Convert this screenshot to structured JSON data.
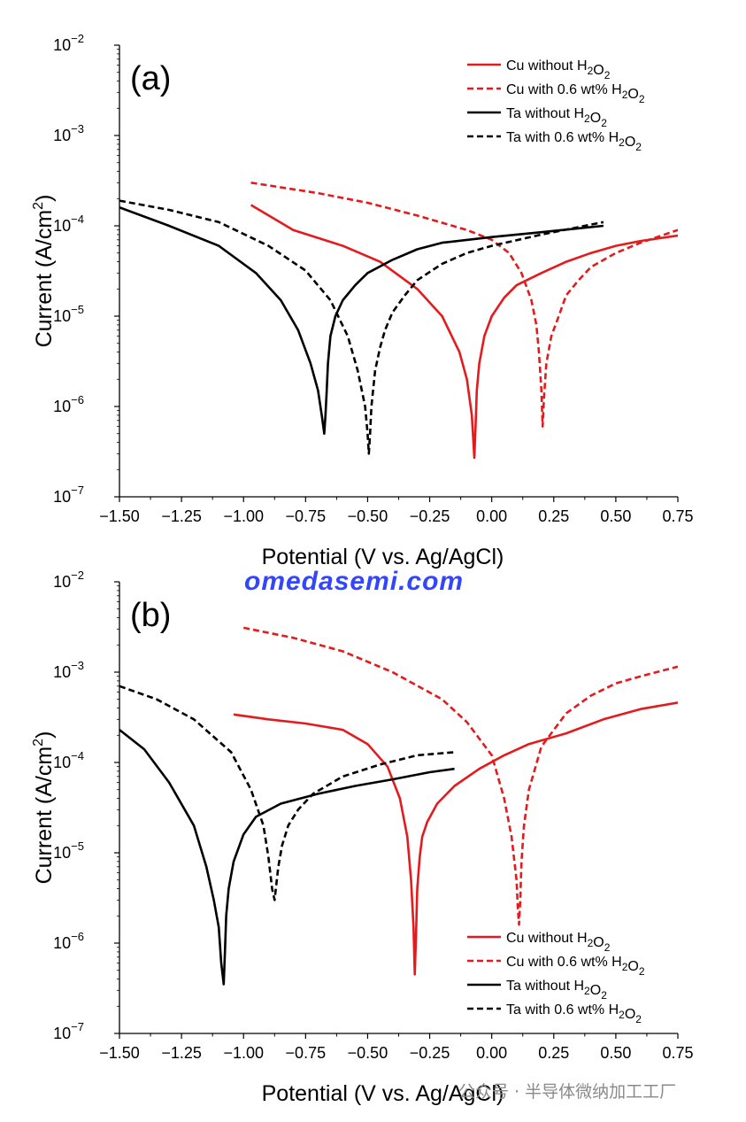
{
  "watermark": "omedasemi.com",
  "watermark_bottom": "公众号 · 半导体微纳加工工厂",
  "chart_data": [
    {
      "type": "line",
      "panel_label": "(a)",
      "xlabel": "Potential (V vs. Ag/AgCl)",
      "ylabel": "Current (A/cm²)",
      "y_scale": "log",
      "xlim": [
        -1.5,
        0.75
      ],
      "ylim": [
        1e-07,
        0.01
      ],
      "x_ticks": [
        "−1.50",
        "−1.25",
        "−1.00",
        "−0.75",
        "−0.50",
        "−0.25",
        "0.00",
        "0.25",
        "0.50",
        "0.75"
      ],
      "y_ticks": [
        {
          "base": "10",
          "exp": "−2"
        },
        {
          "base": "10",
          "exp": "−3"
        },
        {
          "base": "10",
          "exp": "−4"
        },
        {
          "base": "10",
          "exp": "−5"
        },
        {
          "base": "10",
          "exp": "−6"
        },
        {
          "base": "10",
          "exp": "−7"
        }
      ],
      "legend_position": "top-right",
      "series": [
        {
          "name": "Cu without H₂O₂",
          "color": "#e41a1c",
          "dash": false,
          "x": [
            -0.97,
            -0.8,
            -0.6,
            -0.45,
            -0.3,
            -0.2,
            -0.13,
            -0.1,
            -0.08,
            -0.07,
            -0.065,
            -0.06,
            -0.05,
            -0.03,
            0.0,
            0.05,
            0.1,
            0.2,
            0.3,
            0.4,
            0.5,
            0.6,
            0.75
          ],
          "y": [
            0.00017,
            9e-05,
            6e-05,
            4e-05,
            2e-05,
            1e-05,
            4e-06,
            2e-06,
            8e-07,
            2.7e-07,
            6e-07,
            1.5e-06,
            3e-06,
            6e-06,
            1e-05,
            1.6e-05,
            2.2e-05,
            3e-05,
            4e-05,
            5e-05,
            6e-05,
            6.8e-05,
            7.8e-05
          ]
        },
        {
          "name": "Cu with 0.6 wt% H₂O₂",
          "color": "#e41a1c",
          "dash": true,
          "x": [
            -0.97,
            -0.7,
            -0.5,
            -0.3,
            -0.1,
            0.0,
            0.07,
            0.12,
            0.16,
            0.18,
            0.19,
            0.2,
            0.205,
            0.21,
            0.22,
            0.24,
            0.27,
            0.3,
            0.35,
            0.4,
            0.5,
            0.6,
            0.75
          ],
          "y": [
            0.0003,
            0.00023,
            0.00018,
            0.00013,
            9e-05,
            7e-05,
            5e-05,
            3e-05,
            1.5e-05,
            8e-06,
            4e-06,
            1.5e-06,
            6e-07,
            1.2e-06,
            3e-06,
            6e-06,
            1e-05,
            1.7e-05,
            2.5e-05,
            3.5e-05,
            5e-05,
            6.5e-05,
            9e-05
          ]
        },
        {
          "name": "Ta without H₂O₂",
          "color": "#000000",
          "dash": false,
          "x": [
            -1.5,
            -1.3,
            -1.1,
            -0.95,
            -0.85,
            -0.78,
            -0.73,
            -0.7,
            -0.685,
            -0.675,
            -0.67,
            -0.665,
            -0.66,
            -0.65,
            -0.63,
            -0.6,
            -0.55,
            -0.5,
            -0.4,
            -0.3,
            -0.2,
            0.0,
            0.2,
            0.45
          ],
          "y": [
            0.00016,
            0.0001,
            6e-05,
            3e-05,
            1.5e-05,
            7e-06,
            3e-06,
            1.5e-06,
            8e-07,
            5e-07,
            8e-07,
            1.5e-06,
            3e-06,
            6e-06,
            1e-05,
            1.5e-05,
            2.2e-05,
            3e-05,
            4.2e-05,
            5.5e-05,
            6.5e-05,
            7.5e-05,
            8.5e-05,
            0.0001
          ]
        },
        {
          "name": "Ta with 0.6 wt% H₂O₂",
          "color": "#000000",
          "dash": true,
          "x": [
            -1.5,
            -1.3,
            -1.1,
            -0.9,
            -0.75,
            -0.65,
            -0.58,
            -0.54,
            -0.51,
            -0.5,
            -0.495,
            -0.49,
            -0.485,
            -0.47,
            -0.45,
            -0.43,
            -0.4,
            -0.35,
            -0.3,
            -0.2,
            -0.1,
            0.0,
            0.2,
            0.45
          ],
          "y": [
            0.00019,
            0.00015,
            0.00011,
            6e-05,
            3.2e-05,
            1.5e-05,
            6e-06,
            2.5e-06,
            1e-06,
            5e-07,
            3e-07,
            5e-07,
            1e-06,
            2.5e-06,
            4.5e-06,
            7e-06,
            1.1e-05,
            1.7e-05,
            2.5e-05,
            3.8e-05,
            5e-05,
            6e-05,
            8e-05,
            0.00011
          ]
        }
      ]
    },
    {
      "type": "line",
      "panel_label": "(b)",
      "xlabel": "Potential (V vs. Ag/AgCl)",
      "ylabel": "Current (A/cm²)",
      "y_scale": "log",
      "xlim": [
        -1.5,
        0.75
      ],
      "ylim": [
        1e-07,
        0.01
      ],
      "x_ticks": [
        "−1.50",
        "−1.25",
        "−1.00",
        "−0.75",
        "−0.50",
        "−0.25",
        "0.00",
        "0.25",
        "0.50",
        "0.75"
      ],
      "y_ticks": [
        {
          "base": "10",
          "exp": "−2"
        },
        {
          "base": "10",
          "exp": "−3"
        },
        {
          "base": "10",
          "exp": "−4"
        },
        {
          "base": "10",
          "exp": "−5"
        },
        {
          "base": "10",
          "exp": "−6"
        },
        {
          "base": "10",
          "exp": "−7"
        }
      ],
      "legend_position": "bottom-right",
      "series": [
        {
          "name": "Cu without H₂O₂",
          "color": "#e41a1c",
          "dash": false,
          "x": [
            -1.04,
            -0.9,
            -0.75,
            -0.6,
            -0.5,
            -0.42,
            -0.37,
            -0.34,
            -0.325,
            -0.315,
            -0.31,
            -0.305,
            -0.3,
            -0.29,
            -0.28,
            -0.26,
            -0.22,
            -0.15,
            -0.05,
            0.05,
            0.15,
            0.3,
            0.45,
            0.6,
            0.75
          ],
          "y": [
            0.00034,
            0.0003,
            0.00027,
            0.00023,
            0.00016,
            9e-05,
            4e-05,
            1.5e-05,
            5e-06,
            1.5e-06,
            4.5e-07,
            1.2e-06,
            4e-06,
            9e-06,
            1.5e-05,
            2.2e-05,
            3.5e-05,
            5.5e-05,
            8.5e-05,
            0.00012,
            0.00016,
            0.00021,
            0.0003,
            0.00039,
            0.00046
          ]
        },
        {
          "name": "Cu with 0.6 wt% H₂O₂",
          "color": "#e41a1c",
          "dash": true,
          "x": [
            -1.0,
            -0.8,
            -0.6,
            -0.4,
            -0.2,
            -0.1,
            0.0,
            0.05,
            0.08,
            0.1,
            0.105,
            0.11,
            0.115,
            0.12,
            0.13,
            0.15,
            0.2,
            0.3,
            0.4,
            0.5,
            0.6,
            0.75
          ],
          "y": [
            0.0031,
            0.0024,
            0.0017,
            0.001,
            0.0005,
            0.00028,
            0.00012,
            4e-05,
            1.5e-05,
            5e-06,
            2.5e-06,
            1.6e-06,
            3e-06,
            8e-06,
            2e-05,
            5e-05,
            0.00015,
            0.00035,
            0.00055,
            0.00075,
            0.0009,
            0.00115
          ]
        },
        {
          "name": "Ta without H₂O₂",
          "color": "#000000",
          "dash": false,
          "x": [
            -1.5,
            -1.4,
            -1.3,
            -1.2,
            -1.15,
            -1.12,
            -1.1,
            -1.09,
            -1.08,
            -1.075,
            -1.07,
            -1.06,
            -1.04,
            -1.0,
            -0.95,
            -0.85,
            -0.7,
            -0.55,
            -0.4,
            -0.25,
            -0.15
          ],
          "y": [
            0.00023,
            0.00014,
            6e-05,
            2e-05,
            7e-06,
            3e-06,
            1.5e-06,
            6e-07,
            3.5e-07,
            8e-07,
            2e-06,
            4e-06,
            8e-06,
            1.6e-05,
            2.5e-05,
            3.5e-05,
            4.5e-05,
            5.5e-05,
            6.5e-05,
            7.8e-05,
            8.5e-05
          ]
        },
        {
          "name": "Ta with 0.6 wt% H₂O₂",
          "color": "#000000",
          "dash": true,
          "x": [
            -1.5,
            -1.35,
            -1.2,
            -1.05,
            -0.97,
            -0.92,
            -0.9,
            -0.885,
            -0.875,
            -0.87,
            -0.86,
            -0.845,
            -0.82,
            -0.78,
            -0.72,
            -0.6,
            -0.45,
            -0.3,
            -0.15
          ],
          "y": [
            0.0007,
            0.0005,
            0.0003,
            0.00013,
            5e-05,
            2e-05,
            9e-06,
            4e-06,
            3e-06,
            4e-06,
            7e-06,
            1.2e-05,
            2e-05,
            3e-05,
            4.5e-05,
            7e-05,
            9.5e-05,
            0.00012,
            0.00013
          ]
        }
      ]
    }
  ]
}
